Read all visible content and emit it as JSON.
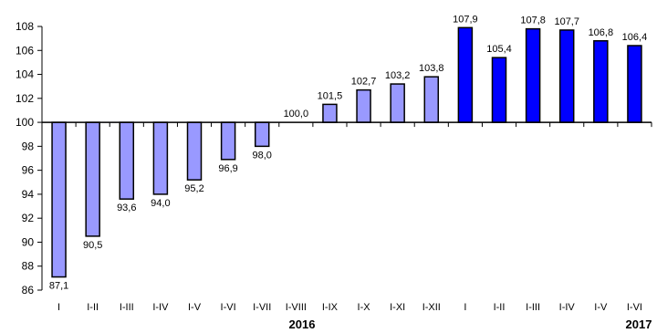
{
  "chart_data": {
    "type": "bar",
    "categories": [
      "I",
      "I-II",
      "I-III",
      "I-IV",
      "I-V",
      "I-VI",
      "I-VII",
      "I-VIII",
      "I-IX",
      "I-X",
      "I-XI",
      "I-XII",
      "I",
      "I-II",
      "I-III",
      "I-IV",
      "I-V",
      "I-VI"
    ],
    "values": [
      87.1,
      90.5,
      93.6,
      94.0,
      95.2,
      96.9,
      98.0,
      100.0,
      101.5,
      102.7,
      103.2,
      103.8,
      107.9,
      105.4,
      107.8,
      107.7,
      106.8,
      106.4
    ],
    "data_labels": [
      "87,1",
      "90,5",
      "93,6",
      "94,0",
      "95,2",
      "96,9",
      "98,0",
      "100,0",
      "101,5",
      "102,7",
      "103,2",
      "103,8",
      "107,9",
      "105,4",
      "107,8",
      "107,7",
      "106,8",
      "106,4"
    ],
    "year_of_bar": [
      "2016",
      "2016",
      "2016",
      "2016",
      "2016",
      "2016",
      "2016",
      "2016",
      "2016",
      "2016",
      "2016",
      "2016",
      "2017",
      "2017",
      "2017",
      "2017",
      "2017",
      "2017"
    ],
    "year_labels": [
      "2016",
      "2017"
    ],
    "colors": {
      "2016": "#9999ff",
      "2017": "#0000ff",
      "outline": "#000000"
    },
    "baseline": 100,
    "ylim": [
      86,
      108
    ],
    "yticks": [
      86,
      88,
      90,
      92,
      94,
      96,
      98,
      100,
      102,
      104,
      106,
      108
    ],
    "title": "",
    "xlabel": "",
    "ylabel": "",
    "grid": false,
    "legend": "none"
  }
}
